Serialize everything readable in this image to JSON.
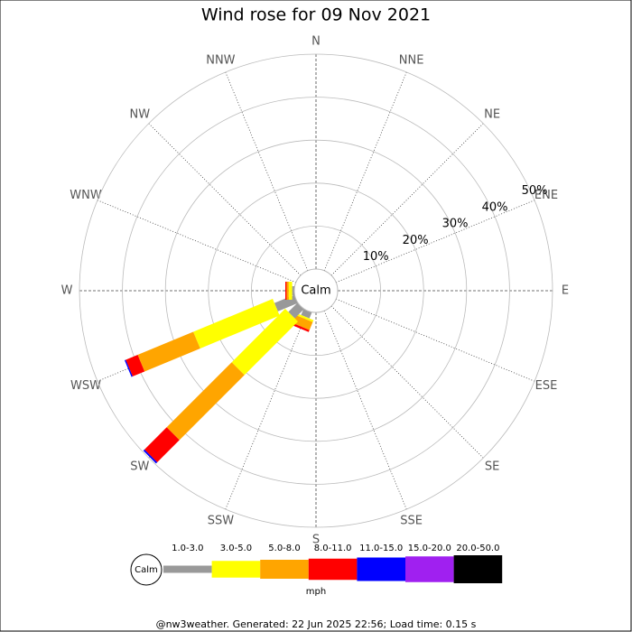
{
  "chart_data": {
    "type": "wind_rose",
    "title": "Wind rose for 09 Nov 2021",
    "directions": [
      "N",
      "NNE",
      "NE",
      "ENE",
      "E",
      "ESE",
      "SE",
      "SSE",
      "S",
      "SSW",
      "SW",
      "WSW",
      "W",
      "WNW",
      "NW",
      "NNW"
    ],
    "calm_label": "Calm",
    "rlim": [
      0,
      50
    ],
    "rticks": [
      {
        "value": 10,
        "label": "10%"
      },
      {
        "value": 20,
        "label": "20%"
      },
      {
        "value": 30,
        "label": "30%"
      },
      {
        "value": 40,
        "label": "40%"
      },
      {
        "value": 50,
        "label": "50%"
      }
    ],
    "series": [
      {
        "name": "1.0-3.0",
        "color": "#999999",
        "values": [
          0,
          0,
          0,
          0,
          0,
          0,
          0,
          0,
          0,
          1.5,
          3,
          5,
          0.5,
          0,
          0,
          0
        ]
      },
      {
        "name": "3.0-5.0",
        "color": "#ffff00",
        "values": [
          0,
          0,
          0,
          0,
          0,
          0,
          0,
          0,
          0,
          0.5,
          17.6,
          20,
          0.8,
          0,
          0,
          0
        ]
      },
      {
        "name": "5.0-8.0",
        "color": "#ffa500",
        "values": [
          0,
          0,
          0,
          0,
          0,
          0,
          0,
          0,
          0,
          2,
          21.4,
          14,
          0.5,
          0,
          0,
          0
        ]
      },
      {
        "name": "8.0-11.0",
        "color": "#ff0000",
        "values": [
          0,
          0,
          0,
          0,
          0,
          0,
          0,
          0,
          0,
          0.5,
          7.3,
          3,
          0.3,
          0,
          0,
          0
        ]
      },
      {
        "name": "11.0-15.0",
        "color": "#0000ff",
        "values": [
          0,
          0,
          0,
          0,
          0,
          0,
          0,
          0,
          0,
          0,
          0.4,
          0.3,
          0,
          0,
          0,
          0
        ]
      },
      {
        "name": "15.0-20.0",
        "color": "#a020f0",
        "values": [
          0,
          0,
          0,
          0,
          0,
          0,
          0,
          0,
          0,
          0,
          0,
          0,
          0,
          0,
          0,
          0
        ]
      },
      {
        "name": "20.0-50.0",
        "color": "#000000",
        "values": [
          0,
          0,
          0,
          0,
          0,
          0,
          0,
          0,
          0,
          0,
          0,
          0,
          0,
          0,
          0,
          0
        ]
      }
    ],
    "unit": "mph",
    "footer": "@nw3weather. Generated: 22 Jun 2025 22:56; Load time: 0.15 s"
  }
}
